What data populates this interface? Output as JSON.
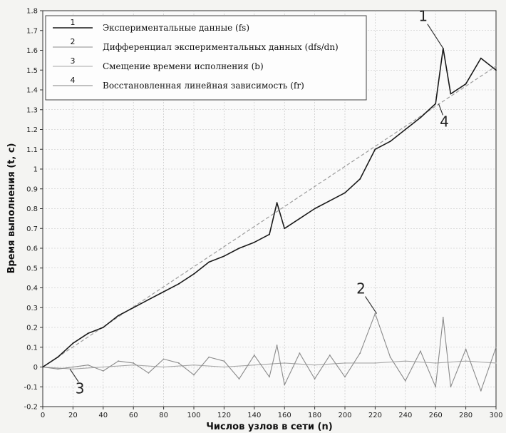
{
  "chart_data": {
    "type": "line",
    "xlabel": "Числов узлов в сети (n)",
    "ylabel": "Время выполнения (t, с)",
    "xlim": [
      0,
      300
    ],
    "ylim": [
      -0.2,
      1.8
    ],
    "x_ticks": [
      "0",
      "20",
      "40",
      "60",
      "80",
      "100",
      "120",
      "140",
      "160",
      "180",
      "200",
      "220",
      "240",
      "260",
      "280",
      "300"
    ],
    "y_ticks": [
      "-0.2",
      "-0.1",
      "0",
      "0.1",
      "0.2",
      "0.3",
      "0.4",
      "0.5",
      "0.6",
      "0.7",
      "0.8",
      "0.9",
      "1",
      "1.1",
      "1.2",
      "1.3",
      "1.4",
      "1.5",
      "1.6",
      "1.7",
      "1.8"
    ],
    "grid": true,
    "legend_position": "top-left",
    "series": [
      {
        "id": "1",
        "name": "Экспериментальные данные (fs)",
        "color": "#1a1a1a",
        "x": [
          0,
          10,
          20,
          30,
          40,
          50,
          60,
          70,
          80,
          90,
          100,
          110,
          120,
          130,
          140,
          150,
          155,
          160,
          170,
          180,
          190,
          200,
          210,
          220,
          230,
          240,
          250,
          260,
          265,
          270,
          280,
          290,
          300
        ],
        "y": [
          0,
          0.05,
          0.12,
          0.17,
          0.2,
          0.26,
          0.3,
          0.34,
          0.38,
          0.42,
          0.47,
          0.53,
          0.56,
          0.6,
          0.63,
          0.67,
          0.83,
          0.7,
          0.75,
          0.8,
          0.84,
          0.88,
          0.95,
          1.1,
          1.14,
          1.2,
          1.26,
          1.33,
          1.61,
          1.38,
          1.43,
          1.56,
          1.5
        ]
      },
      {
        "id": "2",
        "name": "Дифференциал экспериментальных данных (dfs/dn)",
        "color": "#8a8a8a",
        "x": [
          0,
          10,
          20,
          30,
          40,
          50,
          60,
          70,
          80,
          90,
          100,
          110,
          120,
          130,
          140,
          150,
          155,
          160,
          170,
          180,
          190,
          200,
          210,
          220,
          230,
          240,
          250,
          260,
          265,
          270,
          280,
          290,
          300
        ],
        "y": [
          0,
          -0.01,
          0,
          0.01,
          -0.02,
          0.03,
          0.02,
          -0.03,
          0.04,
          0.02,
          -0.04,
          0.05,
          0.03,
          -0.06,
          0.06,
          -0.05,
          0.11,
          -0.09,
          0.07,
          -0.06,
          0.06,
          -0.05,
          0.07,
          0.27,
          0.05,
          -0.07,
          0.08,
          -0.1,
          0.25,
          -0.1,
          0.09,
          -0.12,
          0.1
        ]
      },
      {
        "id": "3",
        "name": "Смещение времени исполнения (b)",
        "color": "#a6a6a6",
        "x": [
          0,
          20,
          40,
          60,
          80,
          100,
          120,
          140,
          160,
          180,
          200,
          220,
          240,
          260,
          280,
          300
        ],
        "y": [
          0,
          -0.01,
          0,
          0.01,
          0,
          0.01,
          0,
          0.01,
          0.02,
          0.01,
          0.02,
          0.02,
          0.03,
          0.02,
          0.03,
          0.02
        ]
      },
      {
        "id": "4",
        "name": "Восстановленная линейная зависимость (fr)",
        "color": "#9c9c9c",
        "x": [
          0,
          300
        ],
        "y": [
          0,
          1.52
        ]
      }
    ],
    "legend": [
      {
        "num": "1",
        "text": "Экспериментальные данные (fs)"
      },
      {
        "num": "2",
        "text": "Дифференциал экспериментальных данных (dfs/dn)"
      },
      {
        "num": "3",
        "text": "Смещение времени исполнения (b)"
      },
      {
        "num": "4",
        "text": "Восстановленная линейная зависимость (fr)"
      }
    ],
    "callouts": [
      {
        "label": "1",
        "x": 265,
        "y": 1.61
      },
      {
        "label": "4",
        "x": 262,
        "y": 1.33
      },
      {
        "label": "2",
        "x": 221,
        "y": 0.27
      },
      {
        "label": "3",
        "x": 18,
        "y": -0.01
      }
    ]
  }
}
